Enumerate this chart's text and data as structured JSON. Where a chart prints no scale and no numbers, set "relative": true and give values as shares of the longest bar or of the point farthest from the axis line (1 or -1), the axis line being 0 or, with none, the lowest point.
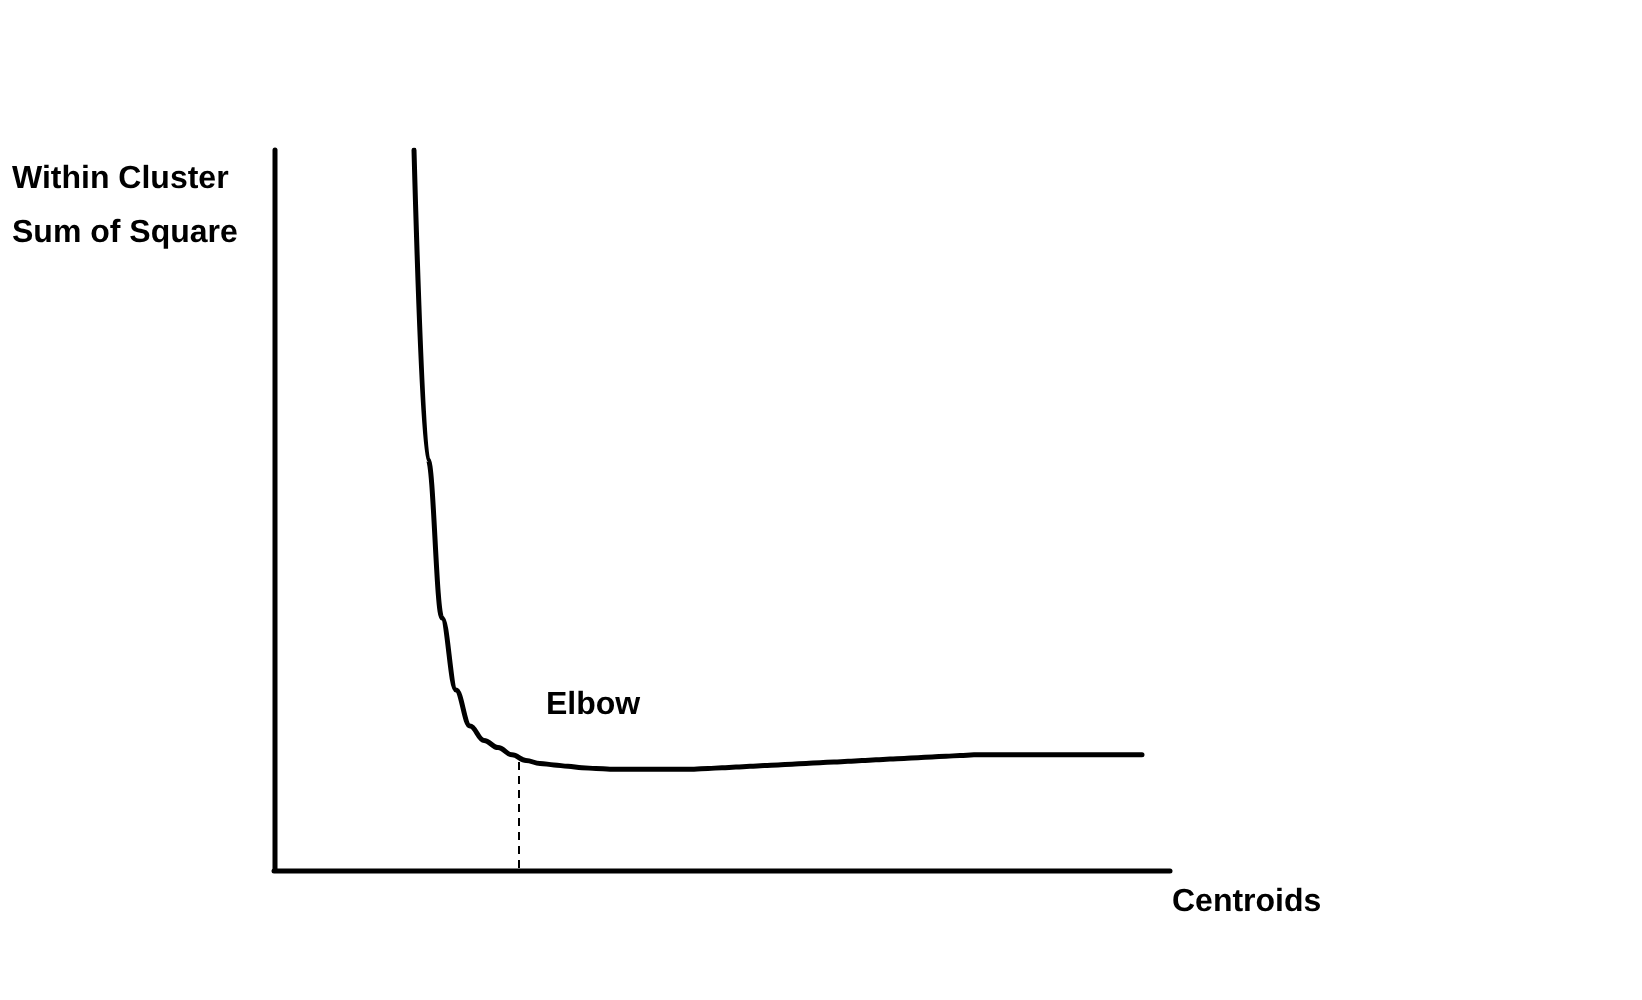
{
  "chart_data": {
    "type": "line",
    "relative": true,
    "xlabel": "Centroids",
    "ylabel": "Within Cluster\nSum of Square",
    "annotations": [
      "Elbow"
    ],
    "marker": "none",
    "line_style": "solid",
    "categories": [
      null,
      null,
      null,
      null,
      null,
      null,
      null,
      null,
      null,
      null,
      null,
      null,
      null,
      null,
      null,
      null,
      null,
      null,
      null,
      null,
      null,
      null,
      null,
      null,
      null,
      null,
      null,
      null,
      null,
      null,
      null,
      null,
      null,
      null,
      null,
      null,
      null,
      null,
      null,
      null,
      null,
      null,
      null,
      null,
      null,
      null,
      null,
      null,
      null,
      null,
      null,
      null,
      null,
      null,
      null,
      null,
      null,
      null,
      null,
      null,
      null,
      null,
      null,
      null,
      null
    ],
    "series": [
      {
        "color": "#000000",
        "values": [
          null,
          null,
          null,
          null,
          null,
          null,
          null,
          null,
          null,
          null,
          1,
          0.57,
          0.35,
          0.25,
          0.2,
          0.18,
          0.17,
          0.16,
          0.152,
          0.148,
          0.146,
          0.144,
          0.142,
          0.141,
          0.14,
          0.14,
          0.14,
          0.14,
          0.14,
          0.14,
          0.14,
          0.141,
          0.142,
          0.143,
          0.144,
          0.145,
          0.146,
          0.147,
          0.148,
          0.149,
          0.15,
          0.151,
          0.152,
          0.153,
          0.154,
          0.155,
          0.156,
          0.157,
          0.158,
          0.159,
          0.16,
          0.16,
          0.16,
          0.16,
          0.16,
          0.16,
          0.16,
          0.16,
          0.16,
          0.16,
          0.16,
          0.16,
          0.16,
          null,
          null
        ]
      }
    ]
  }
}
